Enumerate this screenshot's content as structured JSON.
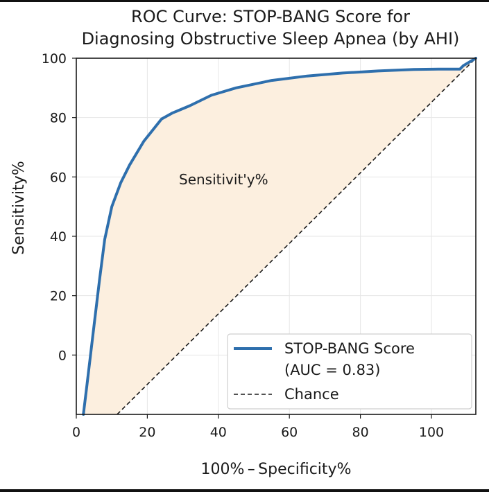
{
  "chart_data": {
    "type": "line",
    "title_line1": "ROC Curve: STOP-BANG Score for",
    "title_line2": "Diagnosing Obstructive Sleep Apnea (by AHI)",
    "xlabel": "100% – Specificity%",
    "ylabel": "Sensitivity%",
    "annotation": "Sensitivit'y%",
    "xlim": [
      0,
      112.5
    ],
    "ylim": [
      -20,
      100
    ],
    "xticks": [
      0,
      20,
      40,
      60,
      80,
      100
    ],
    "yticks": [
      0,
      20,
      40,
      60,
      80,
      100
    ],
    "grid": true,
    "legend_position": "lower-right",
    "series": [
      {
        "name": "STOP-BANG Score",
        "legend_line2": "(AUC = 0.83)",
        "color": "#2e6fad",
        "fill": "#fcefdf",
        "x": [
          2,
          3,
          5,
          6.5,
          8,
          10,
          12.5,
          15,
          19,
          24,
          27,
          32,
          38,
          45,
          55,
          65,
          75,
          85,
          95,
          102,
          108,
          109,
          112.5
        ],
        "y": [
          -20,
          -10,
          10,
          25,
          39,
          50,
          58,
          64,
          72,
          79.5,
          81.5,
          84,
          87.5,
          90,
          92.5,
          94,
          95,
          95.7,
          96.2,
          96.3,
          96.3,
          97.5,
          100
        ]
      },
      {
        "name": "Chance",
        "color": "#1a1a1a",
        "dashed": true,
        "x": [
          11.5,
          112.5
        ],
        "y": [
          -20,
          100
        ]
      }
    ]
  }
}
